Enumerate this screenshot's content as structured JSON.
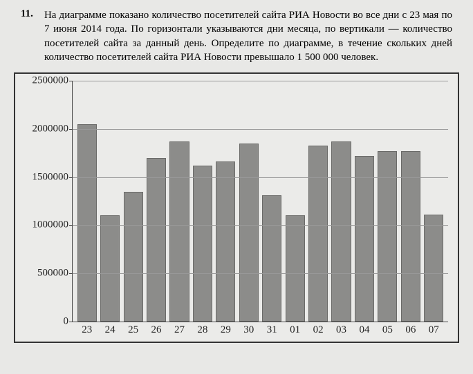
{
  "problem": {
    "number": "11.",
    "text": "На диаграмме показано количество посетителей сайта РИА Новости во все дни с 23 мая по 7 июня 2014 года. По горизонтали указываются дни месяца, по вертикали — количество посетителей сайта за данный день. Определите по диаграмме, в течение скольких дней количество посетителей сайта РИА Новости превышало 1 500 000 человек."
  },
  "chart": {
    "type": "bar",
    "background_color": "#ebebe9",
    "border_color": "#333333",
    "bar_color": "#8c8c8a",
    "bar_border_color": "#6a6a68",
    "grid_color": "#999999",
    "axis_color": "#444444",
    "y_axis": {
      "min": 0,
      "max": 2500000,
      "ticks": [
        0,
        500000,
        1000000,
        1500000,
        2000000,
        2500000
      ],
      "label_fontsize": 15
    },
    "x_axis": {
      "labels": [
        "23",
        "24",
        "25",
        "26",
        "27",
        "28",
        "29",
        "30",
        "31",
        "01",
        "02",
        "03",
        "04",
        "05",
        "06",
        "07"
      ],
      "label_fontsize": 15
    },
    "data": [
      {
        "label": "23",
        "value": 2050000
      },
      {
        "label": "24",
        "value": 1100000
      },
      {
        "label": "25",
        "value": 1350000
      },
      {
        "label": "26",
        "value": 1700000
      },
      {
        "label": "27",
        "value": 1870000
      },
      {
        "label": "28",
        "value": 1620000
      },
      {
        "label": "29",
        "value": 1660000
      },
      {
        "label": "30",
        "value": 1850000
      },
      {
        "label": "31",
        "value": 1310000
      },
      {
        "label": "01",
        "value": 1100000
      },
      {
        "label": "02",
        "value": 1830000
      },
      {
        "label": "03",
        "value": 1870000
      },
      {
        "label": "04",
        "value": 1720000
      },
      {
        "label": "05",
        "value": 1770000
      },
      {
        "label": "06",
        "value": 1770000
      },
      {
        "label": "07",
        "value": 1110000
      }
    ]
  }
}
